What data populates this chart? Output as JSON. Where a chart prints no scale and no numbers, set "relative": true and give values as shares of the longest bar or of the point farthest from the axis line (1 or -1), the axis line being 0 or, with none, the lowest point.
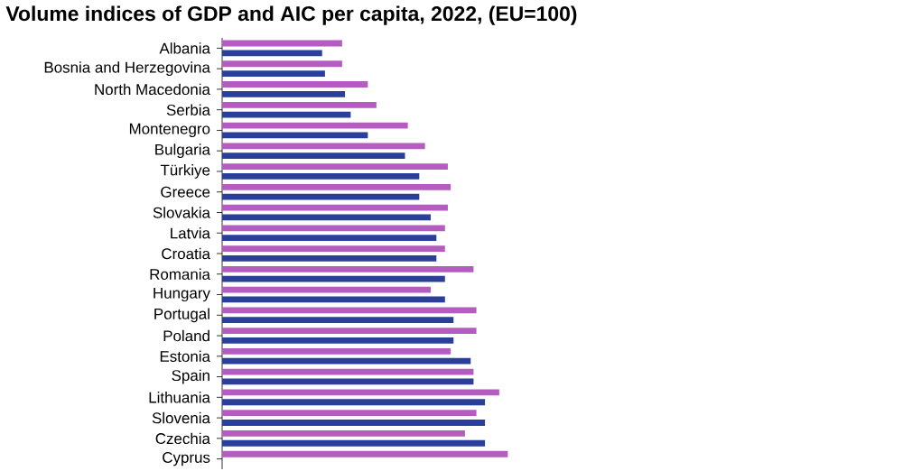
{
  "chart_data": {
    "type": "bar",
    "orientation": "horizontal",
    "relative": true,
    "title": "Volume indices of GDP and AIC per capita, 2022, (EU=100)",
    "categories": [
      "Albania",
      "Bosnia and Herzegovina",
      "North Macedonia",
      "Serbia",
      "Montenegro",
      "Bulgaria",
      "Türkiye",
      "Greece",
      "Slovakia",
      "Latvia",
      "Croatia",
      "Romania",
      "Hungary",
      "Portugal",
      "Poland",
      "Estonia",
      "Spain",
      "Lithuania",
      "Slovenia",
      "Czechia",
      "Cyprus"
    ],
    "series": [
      {
        "color": "#b45cc0",
        "values": [
          0.42,
          0.42,
          0.51,
          0.54,
          0.65,
          0.71,
          0.79,
          0.8,
          0.79,
          0.78,
          0.78,
          0.88,
          0.73,
          0.89,
          0.89,
          0.8,
          0.88,
          0.97,
          0.89,
          0.85,
          1.0
        ]
      },
      {
        "color": "#2a3f9a",
        "values": [
          0.35,
          0.36,
          0.43,
          0.45,
          0.51,
          0.64,
          0.69,
          0.69,
          0.73,
          0.75,
          0.75,
          0.78,
          0.78,
          0.81,
          0.81,
          0.87,
          0.88,
          0.92,
          0.92,
          0.92,
          null
        ]
      }
    ]
  }
}
